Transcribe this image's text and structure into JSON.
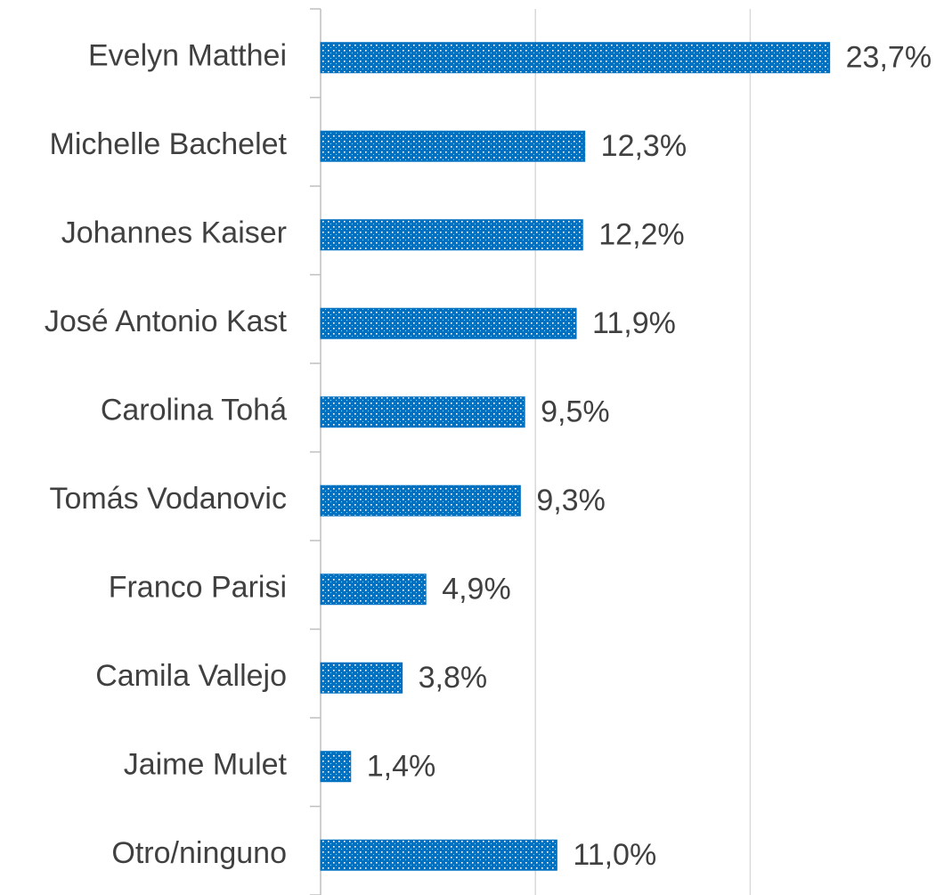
{
  "chart_data": {
    "type": "bar",
    "orientation": "horizontal",
    "categories": [
      "Evelyn Matthei",
      "Michelle Bachelet",
      "Johannes Kaiser",
      "José Antonio Kast",
      "Carolina Tohá",
      "Tomás Vodanovic",
      "Franco Parisi",
      "Camila Vallejo",
      "Jaime Mulet",
      "Otro/ninguno"
    ],
    "values": [
      23.7,
      12.3,
      12.2,
      11.9,
      9.5,
      9.3,
      4.9,
      3.8,
      1.4,
      11.0
    ],
    "value_labels": [
      "23,7%",
      "12,3%",
      "12,2%",
      "11,9%",
      "9,5%",
      "9,3%",
      "4,9%",
      "3,8%",
      "1,4%",
      "11,0%"
    ],
    "color": "#0070c0",
    "xlim": [
      0,
      25
    ],
    "xticks": [
      0,
      10,
      20
    ],
    "grid": true
  }
}
